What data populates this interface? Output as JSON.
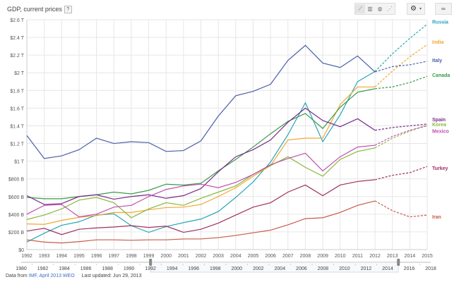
{
  "header": {
    "title": "GDP, current prices",
    "help_label": "?",
    "view_buttons": [
      {
        "name": "line-chart-icon",
        "glyph": "⟋",
        "selected": true
      },
      {
        "name": "bar-chart-icon",
        "glyph": "▥",
        "selected": false
      },
      {
        "name": "map-icon",
        "glyph": "◍",
        "selected": false
      },
      {
        "name": "scatter-chart-icon",
        "glyph": "⋰",
        "selected": false
      }
    ],
    "settings_glyph": "⚙",
    "settings_caret": "▾",
    "link_glyph": "∞"
  },
  "footer": {
    "prefix": "Data from",
    "source": "IMF, April 2013 WEO",
    "updated": "Last updated: Jun 29, 2013"
  },
  "range_slider": {
    "ticks": [
      "1980",
      "1982",
      "1984",
      "1986",
      "1988",
      "1990",
      "1992",
      "1994",
      "1996",
      "1998",
      "2000",
      "2002",
      "2004",
      "2006",
      "2008",
      "2010",
      "2012",
      "2014",
      "2016",
      "2018"
    ],
    "min_year": 1980,
    "max_year": 2018,
    "selected_start": 1992,
    "selected_end": 2015
  },
  "chart_data": {
    "type": "line",
    "title": "GDP, current prices",
    "xlabel": "",
    "ylabel": "",
    "x": [
      1992,
      1993,
      1994,
      1995,
      1996,
      1997,
      1998,
      1999,
      2000,
      2001,
      2002,
      2003,
      2004,
      2005,
      2006,
      2007,
      2008,
      2009,
      2010,
      2011,
      2012,
      2013,
      2014,
      2015
    ],
    "projection_start": 2012,
    "ylim": [
      0,
      2600
    ],
    "yunit": "billions USD",
    "yticks": [
      {
        "v": 0,
        "label": "$0"
      },
      {
        "v": 200,
        "label": "$200 B"
      },
      {
        "v": 400,
        "label": "$400 B"
      },
      {
        "v": 600,
        "label": "$600 B"
      },
      {
        "v": 800,
        "label": "$800 B"
      },
      {
        "v": 1000,
        "label": "$1 T"
      },
      {
        "v": 1200,
        "label": "$1.2 T"
      },
      {
        "v": 1400,
        "label": "$1.4 T"
      },
      {
        "v": 1600,
        "label": "$1.6 T"
      },
      {
        "v": 1800,
        "label": "$1.8 T"
      },
      {
        "v": 2000,
        "label": "$2 T"
      },
      {
        "v": 2200,
        "label": "$2.2 T"
      },
      {
        "v": 2400,
        "label": "$2.4 T"
      },
      {
        "v": 2600,
        "label": "$2.6 T"
      }
    ],
    "grid": true,
    "legend": "right-end labels",
    "series": [
      {
        "name": "Russia",
        "color": "#2aa4b8",
        "values": [
          85,
          185,
          275,
          315,
          390,
          405,
          270,
          195,
          260,
          305,
          345,
          430,
          590,
          765,
          990,
          1300,
          1660,
          1220,
          1525,
          1900,
          2015,
          2215,
          2390,
          2550
        ]
      },
      {
        "name": "India",
        "color": "#f0a830",
        "values": [
          290,
          285,
          330,
          365,
          385,
          420,
          420,
          450,
          475,
          480,
          510,
          600,
          700,
          830,
          950,
          1240,
          1260,
          1260,
          1640,
          1840,
          1840,
          2020,
          2180,
          2320
        ]
      },
      {
        "name": "Italy",
        "color": "#4a5fa8",
        "values": [
          1290,
          1030,
          1060,
          1130,
          1260,
          1200,
          1220,
          1210,
          1110,
          1120,
          1230,
          1510,
          1740,
          1790,
          1870,
          2140,
          2310,
          2110,
          2060,
          2190,
          2010,
          2070,
          2090,
          2130
        ]
      },
      {
        "name": "Canada",
        "color": "#3a9a4a",
        "values": [
          590,
          575,
          575,
          600,
          620,
          650,
          630,
          670,
          740,
          730,
          750,
          890,
          1020,
          1160,
          1310,
          1450,
          1540,
          1370,
          1610,
          1780,
          1820,
          1840,
          1890,
          1960
        ]
      },
      {
        "name": "Spain",
        "color": "#7a2a8a",
        "values": [
          610,
          510,
          520,
          600,
          620,
          570,
          600,
          620,
          580,
          610,
          690,
          880,
          1050,
          1130,
          1240,
          1440,
          1600,
          1460,
          1390,
          1480,
          1350,
          1380,
          1400,
          1420
        ]
      },
      {
        "name": "Korea",
        "color": "#8ab83a",
        "values": [
          340,
          390,
          460,
          560,
          590,
          530,
          360,
          460,
          530,
          500,
          580,
          650,
          720,
          850,
          950,
          1050,
          930,
          830,
          1020,
          1110,
          1150,
          1260,
          1340,
          1410
        ]
      },
      {
        "name": "Mexico",
        "color": "#c050b0",
        "values": [
          400,
          500,
          510,
          370,
          400,
          480,
          500,
          600,
          680,
          720,
          740,
          700,
          760,
          850,
          960,
          1030,
          1090,
          890,
          1050,
          1160,
          1180,
          1280,
          1350,
          1400
        ]
      },
      {
        "name": "Turkey",
        "color": "#a03060",
        "values": [
          210,
          240,
          170,
          230,
          245,
          255,
          270,
          250,
          265,
          195,
          230,
          300,
          390,
          480,
          530,
          650,
          730,
          610,
          730,
          770,
          790,
          840,
          870,
          940
        ]
      },
      {
        "name": "Iran",
        "color": "#c85a4a",
        "values": [
          110,
          85,
          75,
          90,
          110,
          110,
          105,
          110,
          110,
          120,
          120,
          135,
          160,
          190,
          220,
          280,
          350,
          360,
          420,
          500,
          550,
          440,
          370,
          390
        ]
      }
    ]
  }
}
